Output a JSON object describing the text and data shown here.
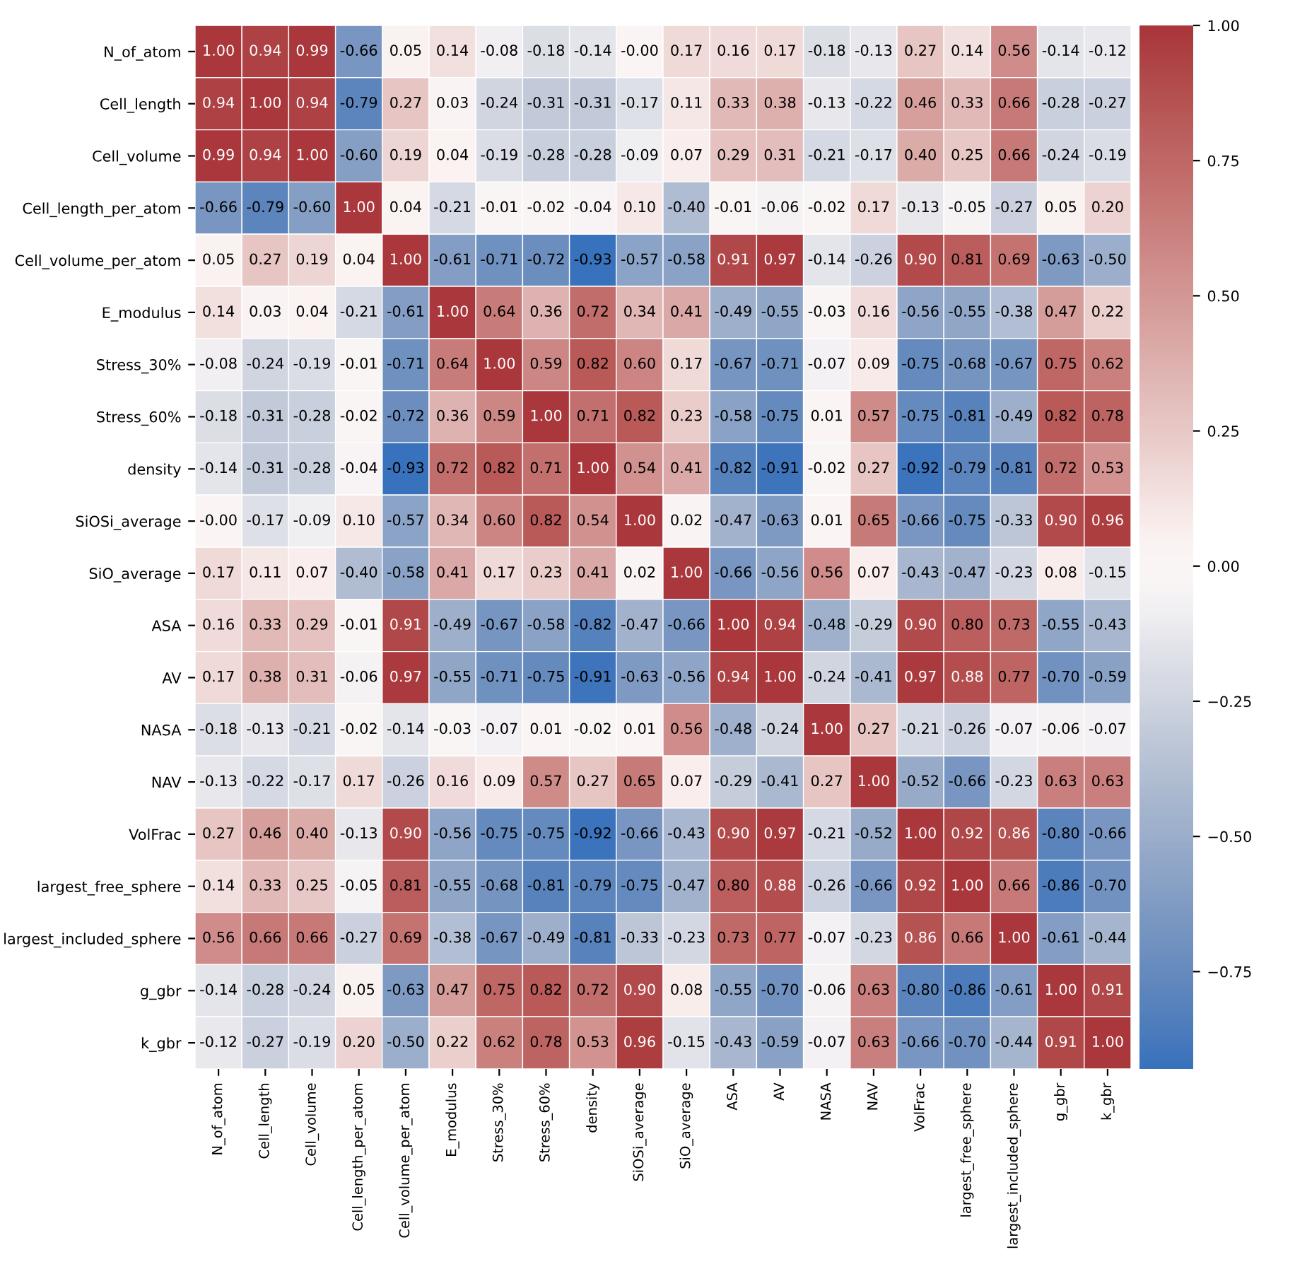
{
  "chart_data": {
    "type": "heatmap",
    "categories": [
      "N_of_atom",
      "Cell_length",
      "Cell_volume",
      "Cell_length_per_atom",
      "Cell_volume_per_atom",
      "E_modulus",
      "Stress_30%",
      "Stress_60%",
      "density",
      "SiOSi_average",
      "SiO_average",
      "ASA",
      "AV",
      "NASA",
      "NAV",
      "VolFrac",
      "largest_free_sphere",
      "largest_included_sphere",
      "g_gbr",
      "k_gbr"
    ],
    "y_categories": [
      "N_of_atom",
      "Cell_length",
      "Cell_volume",
      "Cell_length_per_atom",
      "Cell_volume_per_atom",
      "E_modulus",
      "Stress_30%",
      "Stress_60%",
      "density",
      "SiOSi_average",
      "SiO_average",
      "ASA",
      "AV",
      "NASA",
      "NAV",
      "VolFrac",
      "largest_free_sphere",
      "largest_included_sphere",
      "g_gbr",
      "k_gbr"
    ],
    "cells": [
      [
        1.0,
        0.94,
        0.99,
        -0.66,
        0.05,
        0.14,
        -0.08,
        -0.18,
        -0.14,
        -0.0,
        0.17,
        0.16,
        0.17,
        -0.18,
        -0.13,
        0.27,
        0.14,
        0.56,
        -0.14,
        -0.12
      ],
      [
        0.94,
        1.0,
        0.94,
        -0.79,
        0.27,
        0.03,
        -0.24,
        -0.31,
        -0.31,
        -0.17,
        0.11,
        0.33,
        0.38,
        -0.13,
        -0.22,
        0.46,
        0.33,
        0.66,
        -0.28,
        -0.27
      ],
      [
        0.99,
        0.94,
        1.0,
        -0.6,
        0.19,
        0.04,
        -0.19,
        -0.28,
        -0.28,
        -0.09,
        0.07,
        0.29,
        0.31,
        -0.21,
        -0.17,
        0.4,
        0.25,
        0.66,
        -0.24,
        -0.19
      ],
      [
        -0.66,
        -0.79,
        -0.6,
        1.0,
        0.04,
        -0.21,
        -0.01,
        -0.02,
        -0.04,
        0.1,
        -0.4,
        -0.01,
        -0.06,
        -0.02,
        0.17,
        -0.13,
        -0.05,
        -0.27,
        0.05,
        0.2
      ],
      [
        0.05,
        0.27,
        0.19,
        0.04,
        1.0,
        -0.61,
        -0.71,
        -0.72,
        -0.93,
        -0.57,
        -0.58,
        0.91,
        0.97,
        -0.14,
        -0.26,
        0.9,
        0.81,
        0.69,
        -0.63,
        -0.5
      ],
      [
        0.14,
        0.03,
        0.04,
        -0.21,
        -0.61,
        1.0,
        0.64,
        0.36,
        0.72,
        0.34,
        0.41,
        -0.49,
        -0.55,
        -0.03,
        0.16,
        -0.56,
        -0.55,
        -0.38,
        0.47,
        0.22
      ],
      [
        -0.08,
        -0.24,
        -0.19,
        -0.01,
        -0.71,
        0.64,
        1.0,
        0.59,
        0.82,
        0.6,
        0.17,
        -0.67,
        -0.71,
        -0.07,
        0.09,
        -0.75,
        -0.68,
        -0.67,
        0.75,
        0.62
      ],
      [
        -0.18,
        -0.31,
        -0.28,
        -0.02,
        -0.72,
        0.36,
        0.59,
        1.0,
        0.71,
        0.82,
        0.23,
        -0.58,
        -0.75,
        0.01,
        0.57,
        -0.75,
        -0.81,
        -0.49,
        0.82,
        0.78
      ],
      [
        -0.14,
        -0.31,
        -0.28,
        -0.04,
        -0.93,
        0.72,
        0.82,
        0.71,
        1.0,
        0.54,
        0.41,
        -0.82,
        -0.91,
        -0.02,
        0.27,
        -0.92,
        -0.79,
        -0.81,
        0.72,
        0.53
      ],
      [
        -0.0,
        -0.17,
        -0.09,
        0.1,
        -0.57,
        0.34,
        0.6,
        0.82,
        0.54,
        1.0,
        0.02,
        -0.47,
        -0.63,
        0.01,
        0.65,
        -0.66,
        -0.75,
        -0.33,
        0.9,
        0.96
      ],
      [
        0.17,
        0.11,
        0.07,
        -0.4,
        -0.58,
        0.41,
        0.17,
        0.23,
        0.41,
        0.02,
        1.0,
        -0.66,
        -0.56,
        0.56,
        0.07,
        -0.43,
        -0.47,
        -0.23,
        0.08,
        -0.15
      ],
      [
        0.16,
        0.33,
        0.29,
        -0.01,
        0.91,
        -0.49,
        -0.67,
        -0.58,
        -0.82,
        -0.47,
        -0.66,
        1.0,
        0.94,
        -0.48,
        -0.29,
        0.9,
        0.8,
        0.73,
        -0.55,
        -0.43
      ],
      [
        0.17,
        0.38,
        0.31,
        -0.06,
        0.97,
        -0.55,
        -0.71,
        -0.75,
        -0.91,
        -0.63,
        -0.56,
        0.94,
        1.0,
        -0.24,
        -0.41,
        0.97,
        0.88,
        0.77,
        -0.7,
        -0.59
      ],
      [
        -0.18,
        -0.13,
        -0.21,
        -0.02,
        -0.14,
        -0.03,
        -0.07,
        0.01,
        -0.02,
        0.01,
        0.56,
        -0.48,
        -0.24,
        1.0,
        0.27,
        -0.21,
        -0.26,
        -0.07,
        -0.06,
        -0.07
      ],
      [
        -0.13,
        -0.22,
        -0.17,
        0.17,
        -0.26,
        0.16,
        0.09,
        0.57,
        0.27,
        0.65,
        0.07,
        -0.29,
        -0.41,
        0.27,
        1.0,
        -0.52,
        -0.66,
        -0.23,
        0.63,
        0.63
      ],
      [
        0.27,
        0.46,
        0.4,
        -0.13,
        0.9,
        -0.56,
        -0.75,
        -0.75,
        -0.92,
        -0.66,
        -0.43,
        0.9,
        0.97,
        -0.21,
        -0.52,
        1.0,
        0.92,
        0.86,
        -0.8,
        -0.66
      ],
      [
        0.14,
        0.33,
        0.25,
        -0.05,
        0.81,
        -0.55,
        -0.68,
        -0.81,
        -0.79,
        -0.75,
        -0.47,
        0.8,
        0.88,
        -0.26,
        -0.66,
        0.92,
        1.0,
        0.66,
        -0.86,
        -0.7
      ],
      [
        0.56,
        0.66,
        0.66,
        -0.27,
        0.69,
        -0.38,
        -0.67,
        -0.49,
        -0.81,
        -0.33,
        -0.23,
        0.73,
        0.77,
        -0.07,
        -0.23,
        0.86,
        0.66,
        1.0,
        -0.61,
        -0.44
      ],
      [
        -0.14,
        -0.28,
        -0.24,
        0.05,
        -0.63,
        0.47,
        0.75,
        0.82,
        0.72,
        0.9,
        0.08,
        -0.55,
        -0.7,
        -0.06,
        0.63,
        -0.8,
        -0.86,
        -0.61,
        1.0,
        0.91
      ],
      [
        -0.12,
        -0.27,
        -0.19,
        0.2,
        -0.5,
        0.22,
        0.62,
        0.78,
        0.53,
        0.96,
        -0.15,
        -0.43,
        -0.59,
        -0.07,
        0.63,
        -0.66,
        -0.7,
        -0.44,
        0.91,
        1.0
      ]
    ],
    "cell_labels": [
      [
        "1.00",
        "0.94",
        "0.99",
        "-0.66",
        "0.05",
        "0.14",
        "-0.08",
        "-0.18",
        "-0.14",
        "-0.00",
        "0.17",
        "0.16",
        "0.17",
        "-0.18",
        "-0.13",
        "0.27",
        "0.14",
        "0.56",
        "-0.14",
        "-0.12"
      ],
      [
        "0.94",
        "1.00",
        "0.94",
        "-0.79",
        "0.27",
        "0.03",
        "-0.24",
        "-0.31",
        "-0.31",
        "-0.17",
        "0.11",
        "0.33",
        "0.38",
        "-0.13",
        "-0.22",
        "0.46",
        "0.33",
        "0.66",
        "-0.28",
        "-0.27"
      ],
      [
        "0.99",
        "0.94",
        "1.00",
        "-0.60",
        "0.19",
        "0.04",
        "-0.19",
        "-0.28",
        "-0.28",
        "-0.09",
        "0.07",
        "0.29",
        "0.31",
        "-0.21",
        "-0.17",
        "0.40",
        "0.25",
        "0.66",
        "-0.24",
        "-0.19"
      ],
      [
        "-0.66",
        "-0.79",
        "-0.60",
        "1.00",
        "0.04",
        "-0.21",
        "-0.01",
        "-0.02",
        "-0.04",
        "0.10",
        "-0.40",
        "-0.01",
        "-0.06",
        "-0.02",
        "0.17",
        "-0.13",
        "-0.05",
        "-0.27",
        "0.05",
        "0.20"
      ],
      [
        "0.05",
        "0.27",
        "0.19",
        "0.04",
        "1.00",
        "-0.61",
        "-0.71",
        "-0.72",
        "-0.93",
        "-0.57",
        "-0.58",
        "0.91",
        "0.97",
        "-0.14",
        "-0.26",
        "0.90",
        "0.81",
        "0.69",
        "-0.63",
        "-0.50"
      ],
      [
        "0.14",
        "0.03",
        "0.04",
        "-0.21",
        "-0.61",
        "1.00",
        "0.64",
        "0.36",
        "0.72",
        "0.34",
        "0.41",
        "-0.49",
        "-0.55",
        "-0.03",
        "0.16",
        "-0.56",
        "-0.55",
        "-0.38",
        "0.47",
        "0.22"
      ],
      [
        "-0.08",
        "-0.24",
        "-0.19",
        "-0.01",
        "-0.71",
        "0.64",
        "1.00",
        "0.59",
        "0.82",
        "0.60",
        "0.17",
        "-0.67",
        "-0.71",
        "-0.07",
        "0.09",
        "-0.75",
        "-0.68",
        "-0.67",
        "0.75",
        "0.62"
      ],
      [
        "-0.18",
        "-0.31",
        "-0.28",
        "-0.02",
        "-0.72",
        "0.36",
        "0.59",
        "1.00",
        "0.71",
        "0.82",
        "0.23",
        "-0.58",
        "-0.75",
        "0.01",
        "0.57",
        "-0.75",
        "-0.81",
        "-0.49",
        "0.82",
        "0.78"
      ],
      [
        "-0.14",
        "-0.31",
        "-0.28",
        "-0.04",
        "-0.93",
        "0.72",
        "0.82",
        "0.71",
        "1.00",
        "0.54",
        "0.41",
        "-0.82",
        "-0.91",
        "-0.02",
        "0.27",
        "-0.92",
        "-0.79",
        "-0.81",
        "0.72",
        "0.53"
      ],
      [
        "-0.00",
        "-0.17",
        "-0.09",
        "0.10",
        "-0.57",
        "0.34",
        "0.60",
        "0.82",
        "0.54",
        "1.00",
        "0.02",
        "-0.47",
        "-0.63",
        "0.01",
        "0.65",
        "-0.66",
        "-0.75",
        "-0.33",
        "0.90",
        "0.96"
      ],
      [
        "0.17",
        "0.11",
        "0.07",
        "-0.40",
        "-0.58",
        "0.41",
        "0.17",
        "0.23",
        "0.41",
        "0.02",
        "1.00",
        "-0.66",
        "-0.56",
        "0.56",
        "0.07",
        "-0.43",
        "-0.47",
        "-0.23",
        "0.08",
        "-0.15"
      ],
      [
        "0.16",
        "0.33",
        "0.29",
        "-0.01",
        "0.91",
        "-0.49",
        "-0.67",
        "-0.58",
        "-0.82",
        "-0.47",
        "-0.66",
        "1.00",
        "0.94",
        "-0.48",
        "-0.29",
        "0.90",
        "0.80",
        "0.73",
        "-0.55",
        "-0.43"
      ],
      [
        "0.17",
        "0.38",
        "0.31",
        "-0.06",
        "0.97",
        "-0.55",
        "-0.71",
        "-0.75",
        "-0.91",
        "-0.63",
        "-0.56",
        "0.94",
        "1.00",
        "-0.24",
        "-0.41",
        "0.97",
        "0.88",
        "0.77",
        "-0.70",
        "-0.59"
      ],
      [
        "-0.18",
        "-0.13",
        "-0.21",
        "-0.02",
        "-0.14",
        "-0.03",
        "-0.07",
        "0.01",
        "-0.02",
        "0.01",
        "0.56",
        "-0.48",
        "-0.24",
        "1.00",
        "0.27",
        "-0.21",
        "-0.26",
        "-0.07",
        "-0.06",
        "-0.07"
      ],
      [
        "-0.13",
        "-0.22",
        "-0.17",
        "0.17",
        "-0.26",
        "0.16",
        "0.09",
        "0.57",
        "0.27",
        "0.65",
        "0.07",
        "-0.29",
        "-0.41",
        "0.27",
        "1.00",
        "-0.52",
        "-0.66",
        "-0.23",
        "0.63",
        "0.63"
      ],
      [
        "0.27",
        "0.46",
        "0.40",
        "-0.13",
        "0.90",
        "-0.56",
        "-0.75",
        "-0.75",
        "-0.92",
        "-0.66",
        "-0.43",
        "0.90",
        "0.97",
        "-0.21",
        "-0.52",
        "1.00",
        "0.92",
        "0.86",
        "-0.80",
        "-0.66"
      ],
      [
        "0.14",
        "0.33",
        "0.25",
        "-0.05",
        "0.81",
        "-0.55",
        "-0.68",
        "-0.81",
        "-0.79",
        "-0.75",
        "-0.47",
        "0.80",
        "0.88",
        "-0.26",
        "-0.66",
        "0.92",
        "1.00",
        "0.66",
        "-0.86",
        "-0.70"
      ],
      [
        "0.56",
        "0.66",
        "0.66",
        "-0.27",
        "0.69",
        "-0.38",
        "-0.67",
        "-0.49",
        "-0.81",
        "-0.33",
        "-0.23",
        "0.73",
        "0.77",
        "-0.07",
        "-0.23",
        "0.86",
        "0.66",
        "1.00",
        "-0.61",
        "-0.44"
      ],
      [
        "-0.14",
        "-0.28",
        "-0.24",
        "0.05",
        "-0.63",
        "0.47",
        "0.75",
        "0.82",
        "0.72",
        "0.90",
        "0.08",
        "-0.55",
        "-0.70",
        "-0.06",
        "0.63",
        "-0.80",
        "-0.86",
        "-0.61",
        "1.00",
        "0.91"
      ],
      [
        "-0.12",
        "-0.27",
        "-0.19",
        "0.20",
        "-0.50",
        "0.22",
        "0.62",
        "0.78",
        "0.53",
        "0.96",
        "-0.15",
        "-0.43",
        "-0.59",
        "-0.07",
        "0.63",
        "-0.66",
        "-0.70",
        "-0.44",
        "0.91",
        "1.00"
      ]
    ],
    "clim": [
      -0.93,
      1.0
    ],
    "cticks": [
      {
        "value": -0.75,
        "label": "−0.75"
      },
      {
        "value": -0.5,
        "label": "−0.50"
      },
      {
        "value": -0.25,
        "label": "−0.25"
      },
      {
        "value": 0.0,
        "label": "0.00"
      },
      {
        "value": 0.25,
        "label": "0.25"
      },
      {
        "value": 0.5,
        "label": "0.50"
      },
      {
        "value": 0.75,
        "label": "0.75"
      },
      {
        "value": 1.0,
        "label": "1.00"
      }
    ],
    "data_labels": true
  }
}
